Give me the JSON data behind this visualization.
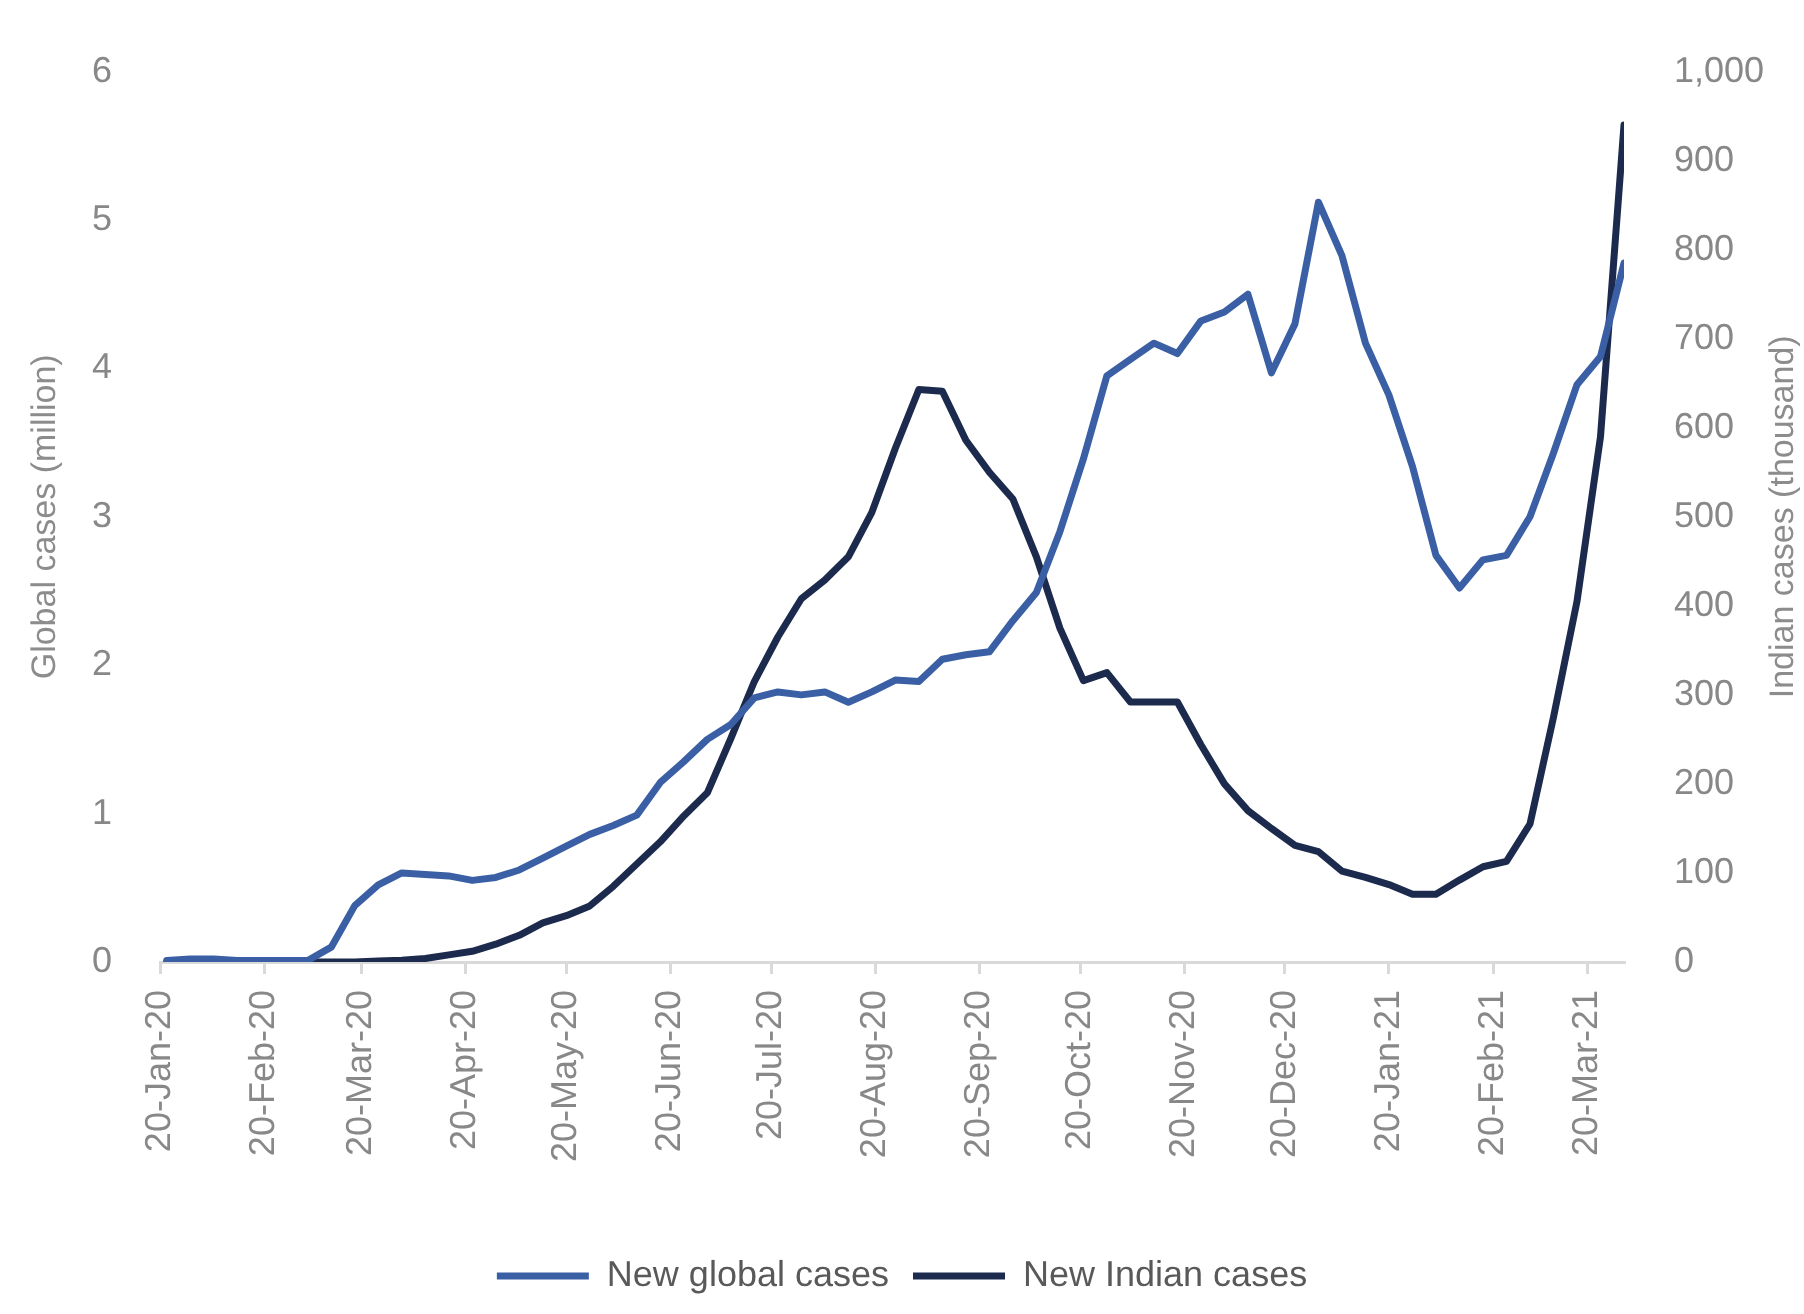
{
  "chart_data": {
    "type": "line",
    "ylabel": "Global cases (million)",
    "y2label": "Indian cases (thousand)",
    "legend": "bottom",
    "x": [
      "2020-01-22",
      "2020-01-29",
      "2020-02-05",
      "2020-02-12",
      "2020-02-19",
      "2020-02-26",
      "2020-03-04",
      "2020-03-11",
      "2020-03-18",
      "2020-03-25",
      "2020-04-01",
      "2020-04-08",
      "2020-04-15",
      "2020-04-22",
      "2020-04-29",
      "2020-05-06",
      "2020-05-13",
      "2020-05-20",
      "2020-05-27",
      "2020-06-03",
      "2020-06-10",
      "2020-06-17",
      "2020-06-24",
      "2020-07-01",
      "2020-07-08",
      "2020-07-15",
      "2020-07-22",
      "2020-07-29",
      "2020-08-05",
      "2020-08-12",
      "2020-08-19",
      "2020-08-26",
      "2020-09-02",
      "2020-09-09",
      "2020-09-16",
      "2020-09-23",
      "2020-09-30",
      "2020-10-07",
      "2020-10-14",
      "2020-10-21",
      "2020-10-28",
      "2020-11-04",
      "2020-11-11",
      "2020-11-18",
      "2020-11-25",
      "2020-12-02",
      "2020-12-09",
      "2020-12-16",
      "2020-12-23",
      "2020-12-30",
      "2021-01-06",
      "2021-01-13",
      "2021-01-20",
      "2021-01-27",
      "2021-02-03",
      "2021-02-10",
      "2021-02-17",
      "2021-02-24",
      "2021-03-03",
      "2021-03-10",
      "2021-03-17",
      "2021-03-24",
      "2021-03-31"
    ],
    "series": [
      {
        "name": "New global cases",
        "color": "#3a5fa5",
        "values": [
          0.01,
          0.02,
          0.02,
          0.01,
          0.01,
          0.01,
          0.01,
          0.1,
          0.38,
          0.52,
          0.6,
          0.59,
          0.58,
          0.55,
          0.57,
          0.62,
          0.7,
          0.78,
          0.86,
          0.92,
          0.99,
          1.21,
          1.35,
          1.5,
          1.6,
          1.78,
          1.82,
          1.8,
          1.82,
          1.75,
          1.82,
          1.9,
          1.89,
          2.04,
          2.07,
          2.09,
          2.3,
          2.49,
          2.9,
          3.39,
          3.95,
          4.06,
          4.17,
          4.1,
          4.32,
          4.38,
          4.5,
          3.97,
          4.3,
          5.12,
          4.76,
          4.17,
          3.82,
          3.34,
          2.74,
          2.52,
          2.71,
          2.74,
          3.0,
          3.43,
          3.89,
          4.08,
          4.71
        ]
      },
      {
        "name": "New Indian cases",
        "color": "#1c2a4d",
        "axis": "y2",
        "values": [
          0,
          0,
          0,
          0,
          0,
          0,
          0,
          0,
          0,
          1,
          2,
          4,
          8,
          12,
          20,
          30,
          44,
          52,
          63,
          85,
          110,
          135,
          164,
          190,
          251,
          315,
          365,
          408,
          429,
          455,
          505,
          577,
          643,
          641,
          586,
          550,
          520,
          455,
          375,
          316,
          325,
          292,
          292,
          292,
          244,
          200,
          170,
          150,
          131,
          124,
          102,
          95,
          87,
          76,
          76,
          92,
          107,
          113,
          155,
          275,
          405,
          590,
          940
        ]
      }
    ],
    "xlim": [
      "2020-01-20",
      "2021-03-31"
    ],
    "xticks": [
      {
        "value": "2020-01-20",
        "label": "20-Jan-20"
      },
      {
        "value": "2020-02-20",
        "label": "20-Feb-20"
      },
      {
        "value": "2020-03-20",
        "label": "20-Mar-20"
      },
      {
        "value": "2020-04-20",
        "label": "20-Apr-20"
      },
      {
        "value": "2020-05-20",
        "label": "20-May-20"
      },
      {
        "value": "2020-06-20",
        "label": "20-Jun-20"
      },
      {
        "value": "2020-07-20",
        "label": "20-Jul-20"
      },
      {
        "value": "2020-08-20",
        "label": "20-Aug-20"
      },
      {
        "value": "2020-09-20",
        "label": "20-Sep-20"
      },
      {
        "value": "2020-10-20",
        "label": "20-Oct-20"
      },
      {
        "value": "2020-11-20",
        "label": "20-Nov-20"
      },
      {
        "value": "2020-12-20",
        "label": "20-Dec-20"
      },
      {
        "value": "2021-01-20",
        "label": "20-Jan-21"
      },
      {
        "value": "2021-02-20",
        "label": "20-Feb-21"
      },
      {
        "value": "2021-03-20",
        "label": "20-Mar-21"
      }
    ],
    "ylim": [
      0,
      6
    ],
    "yticks": [
      0,
      1,
      2,
      3,
      4,
      5,
      6
    ],
    "y2lim": [
      0,
      1000
    ],
    "y2ticks": [
      0,
      100,
      200,
      300,
      400,
      500,
      600,
      700,
      800,
      900,
      {
        "value": 1000,
        "label": "1,000"
      }
    ]
  }
}
